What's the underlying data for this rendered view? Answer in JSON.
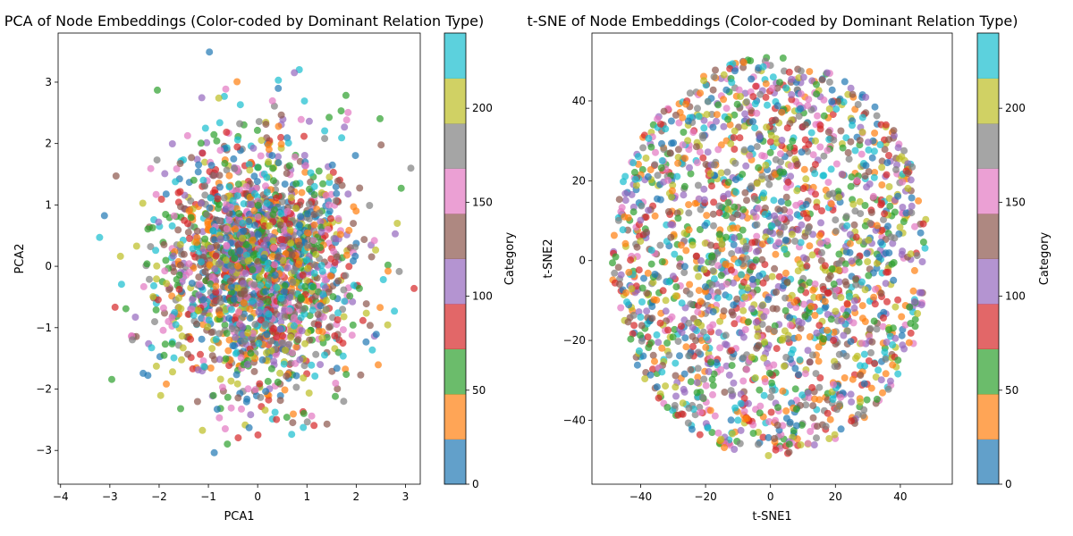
{
  "chart_data": [
    {
      "type": "scatter",
      "title": "PCA of Node Embeddings (Color-coded by Dominant Relation Type)",
      "xlabel": "PCA1",
      "ylabel": "PCA2",
      "xlim": [
        -4.05,
        3.3
      ],
      "ylim": [
        -3.55,
        3.8
      ],
      "xticks": [
        -4,
        -3,
        -2,
        -1,
        0,
        1,
        2,
        3
      ],
      "yticks": [
        -3,
        -2,
        -1,
        0,
        1,
        2,
        3
      ],
      "distribution": {
        "shape": "gaussian",
        "center": [
          0,
          0
        ],
        "std": [
          1.0,
          1.0
        ],
        "count": 2000
      },
      "colorbar": {
        "label": "Category",
        "range": [
          0,
          240
        ],
        "ticks": [
          0,
          50,
          100,
          150,
          200
        ]
      },
      "grid": false
    },
    {
      "type": "scatter",
      "title": "t-SNE of Node Embeddings (Color-coded by Dominant Relation Type)",
      "xlabel": "t-SNE1",
      "ylabel": "t-SNE2",
      "xlim": [
        -55,
        56
      ],
      "ylim": [
        -56,
        57
      ],
      "xticks": [
        -40,
        -20,
        0,
        20,
        40
      ],
      "yticks": [
        -40,
        -20,
        0,
        20,
        40
      ],
      "distribution": {
        "shape": "disc",
        "center": [
          0,
          1
        ],
        "radius": [
          49,
          50
        ],
        "count": 2000
      },
      "colorbar": {
        "label": "Category",
        "range": [
          0,
          240
        ],
        "ticks": [
          0,
          50,
          100,
          150,
          200
        ]
      },
      "grid": false
    }
  ],
  "colormap": [
    "#1f77b4",
    "#ff7f0e",
    "#2ca02c",
    "#d62728",
    "#9467bd",
    "#8c564b",
    "#e377c2",
    "#7f7f7f",
    "#bcbd22",
    "#17becf"
  ]
}
